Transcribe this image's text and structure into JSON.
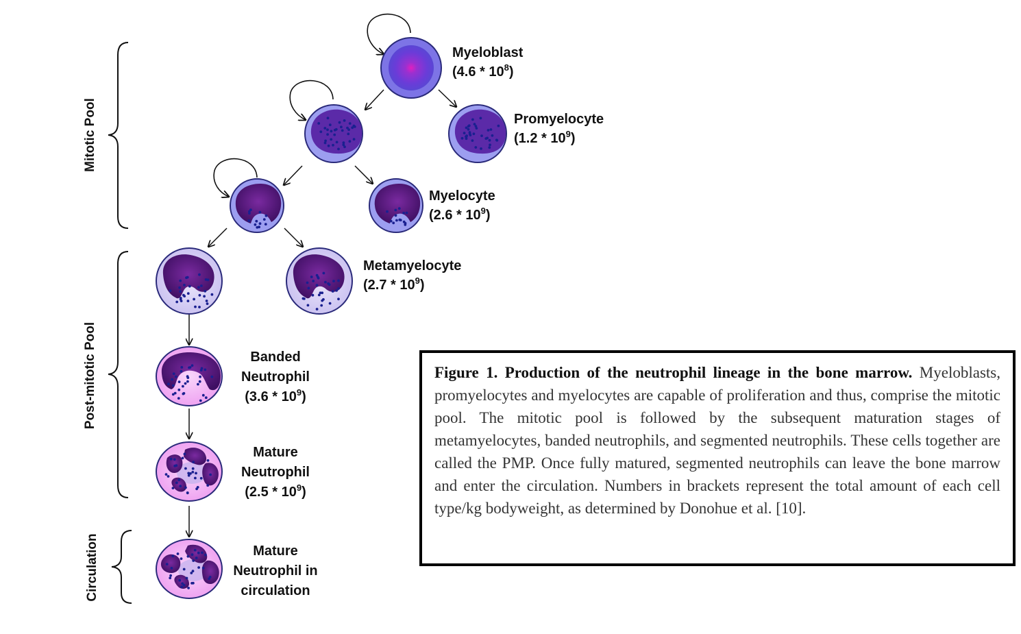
{
  "cells": {
    "myeloblast": {
      "name": "Myeloblast",
      "count_prefix": "(4.6 * 10",
      "count_exp": "8",
      "count_suffix": ")"
    },
    "promyelocyte": {
      "name": "Promyelocyte",
      "count_prefix": "(1.2 * 10",
      "count_exp": "9",
      "count_suffix": ")"
    },
    "myelocyte": {
      "name": "Myelocyte",
      "count_prefix": "(2.6 * 10",
      "count_exp": "9",
      "count_suffix": ")"
    },
    "metamyelocyte": {
      "name": "Metamyelocyte",
      "count_prefix": "(2.7 * 10",
      "count_exp": "9",
      "count_suffix": ")"
    },
    "banded": {
      "line1": "Banded",
      "line2": "Neutrophil",
      "count_prefix": "(3.6 * 10",
      "count_exp": "9",
      "count_suffix": ")"
    },
    "mature": {
      "line1": "Mature",
      "line2": "Neutrophil",
      "count_prefix": "(2.5 * 10",
      "count_exp": "9",
      "count_suffix": ")"
    },
    "circulating": {
      "line1": "Mature",
      "line2": "Neutrophil in",
      "line3": "circulation"
    }
  },
  "pools": {
    "mitotic": "Mitotic Pool",
    "post_mitotic": "Post-mitotic Pool",
    "circulation": "Circulation"
  },
  "caption": {
    "title": "Figure 1. Production of the neutrophil lineage in the bone marrow.",
    "body": "Myeloblasts, promyelocytes and myelocytes are capable of proliferation and thus, comprise the mitotic pool. The mitotic pool is followed by the subsequent maturation stages of metamyelocytes, banded neutrophils, and segmented neutrophils. These cells together are called the PMP. Once fully matured, segmented neutrophils can leave the bone marrow and enter the circulation. Numbers in brackets represent the total amount of each cell type/kg bodyweight, as determined by Donohue et al. [10]."
  },
  "colors": {
    "myeloblast_body": "#7d74e6",
    "blue_cytoplasm": "#9c9ef0",
    "dark_nucleus": "#4a1470",
    "lavender_cytoplasm": "#d9d2f5",
    "pink_cytoplasm": "#f0b6f2",
    "granule": "#1a2090"
  }
}
